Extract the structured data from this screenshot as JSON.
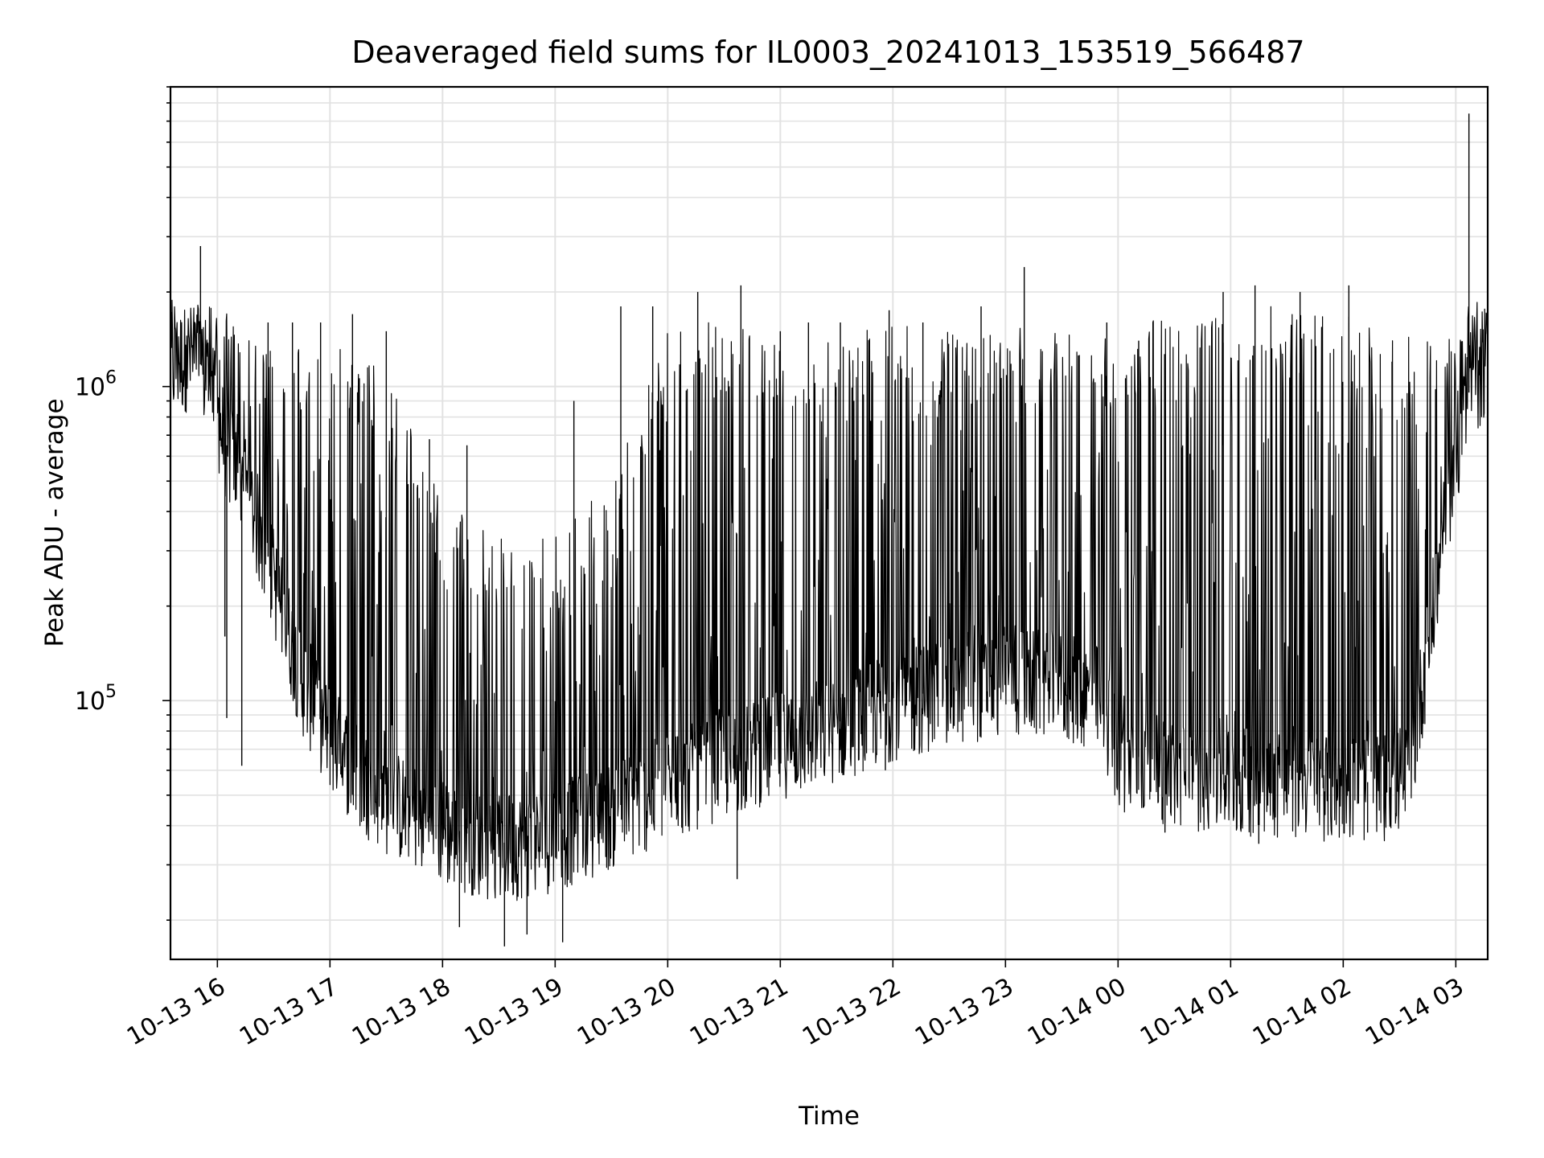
{
  "chart_data": {
    "type": "line",
    "title": "Deaveraged field sums for IL0003_20241013_153519_566487",
    "xlabel": "Time",
    "ylabel": "Peak ADU - average",
    "yscale": "log",
    "ylim": [
      15000,
      9000000
    ],
    "xlim": [
      "2024-10-13 15:35",
      "2024-10-14 03:17"
    ],
    "grid": true,
    "legend": "none",
    "line_color": "#000000",
    "x_ticks": [
      "10-13 16",
      "10-13 17",
      "10-13 18",
      "10-13 19",
      "10-13 20",
      "10-13 21",
      "10-13 22",
      "10-13 23",
      "10-14 00",
      "10-14 01",
      "10-14 02",
      "10-14 03"
    ],
    "x_tick_times": [
      "2024-10-13 16:00",
      "2024-10-13 17:00",
      "2024-10-13 18:00",
      "2024-10-13 19:00",
      "2024-10-13 20:00",
      "2024-10-13 21:00",
      "2024-10-13 22:00",
      "2024-10-13 23:00",
      "2024-10-14 00:00",
      "2024-10-14 01:00",
      "2024-10-14 02:00",
      "2024-10-14 03:00"
    ],
    "y_ticks": [
      {
        "value": 100000,
        "base": "10",
        "exp": "5"
      },
      {
        "value": 1000000,
        "base": "10",
        "exp": "6"
      }
    ],
    "series": [
      {
        "baseline": {
          "x": [
            "2024-10-13 15:35",
            "2024-10-13 15:45",
            "2024-10-13 15:55",
            "2024-10-13 16:05",
            "2024-10-13 16:15",
            "2024-10-13 16:30",
            "2024-10-13 16:45",
            "2024-10-13 17:00",
            "2024-10-13 17:15",
            "2024-10-13 17:30",
            "2024-10-13 17:45",
            "2024-10-13 18:00",
            "2024-10-13 18:30",
            "2024-10-13 19:00",
            "2024-10-13 19:30",
            "2024-10-13 20:00",
            "2024-10-13 20:30",
            "2024-10-13 21:00",
            "2024-10-13 21:30",
            "2024-10-13 22:00",
            "2024-10-13 22:30",
            "2024-10-13 23:00",
            "2024-10-13 23:30",
            "2024-10-13 23:50",
            "2024-10-14 00:00",
            "2024-10-14 00:30",
            "2024-10-14 01:00",
            "2024-10-14 01:30",
            "2024-10-14 02:00",
            "2024-10-14 02:20",
            "2024-10-14 02:35",
            "2024-10-14 02:45",
            "2024-10-14 02:55",
            "2024-10-14 03:05",
            "2024-10-14 03:17"
          ],
          "y": [
            1200000,
            1300000,
            1100000,
            650000,
            500000,
            250000,
            120000,
            80000,
            60000,
            50000,
            45000,
            40000,
            35000,
            38000,
            45000,
            55000,
            65000,
            75000,
            85000,
            100000,
            110000,
            120000,
            115000,
            105000,
            70000,
            60000,
            58000,
            56000,
            55000,
            55000,
            60000,
            150000,
            400000,
            900000,
            1300000
          ]
        },
        "upper_envelope": {
          "x": [
            "2024-10-13 15:35",
            "2024-10-13 16:00",
            "2024-10-13 16:30",
            "2024-10-13 17:00",
            "2024-10-13 17:30",
            "2024-10-13 18:00",
            "2024-10-13 18:30",
            "2024-10-13 19:00",
            "2024-10-13 19:30",
            "2024-10-13 20:00",
            "2024-10-13 20:30",
            "2024-10-13 21:00",
            "2024-10-13 21:30",
            "2024-10-13 22:00",
            "2024-10-13 22:30",
            "2024-10-13 23:00",
            "2024-10-13 23:30",
            "2024-10-14 00:00",
            "2024-10-14 00:30",
            "2024-10-14 01:00",
            "2024-10-14 01:30",
            "2024-10-14 02:00",
            "2024-10-14 02:30",
            "2024-10-14 03:00",
            "2024-10-14 03:17"
          ],
          "y": [
            2000000,
            1900000,
            1300000,
            1500000,
            1100000,
            450000,
            330000,
            330000,
            500000,
            1600000,
            1600000,
            1400000,
            1500000,
            1600000,
            1500000,
            1600000,
            1500000,
            1500000,
            1700000,
            1800000,
            1800000,
            1700000,
            1400000,
            1800000,
            2200000
          ]
        },
        "peaks": [
          {
            "x": "2024-10-13 15:51",
            "y": 2800000
          },
          {
            "x": "2024-10-13 16:27",
            "y": 1600000
          },
          {
            "x": "2024-10-13 16:40",
            "y": 1600000
          },
          {
            "x": "2024-10-13 16:55",
            "y": 1600000
          },
          {
            "x": "2024-10-13 17:12",
            "y": 1700000
          },
          {
            "x": "2024-10-13 17:30",
            "y": 1500000
          },
          {
            "x": "2024-10-13 17:53",
            "y": 680000
          },
          {
            "x": "2024-10-13 18:13",
            "y": 650000
          },
          {
            "x": "2024-10-13 19:10",
            "y": 900000
          },
          {
            "x": "2024-10-13 19:35",
            "y": 1800000
          },
          {
            "x": "2024-10-13 19:52",
            "y": 1800000
          },
          {
            "x": "2024-10-13 20:16",
            "y": 2000000
          },
          {
            "x": "2024-10-13 20:39",
            "y": 2100000
          },
          {
            "x": "2024-10-13 21:00",
            "y": 1500000
          },
          {
            "x": "2024-10-13 21:15",
            "y": 1600000
          },
          {
            "x": "2024-10-13 21:32",
            "y": 1600000
          },
          {
            "x": "2024-10-13 21:58",
            "y": 1750000
          },
          {
            "x": "2024-10-13 22:16",
            "y": 1600000
          },
          {
            "x": "2024-10-13 22:47",
            "y": 1800000
          },
          {
            "x": "2024-10-13 23:10",
            "y": 2400000
          },
          {
            "x": "2024-10-13 23:54",
            "y": 1600000
          },
          {
            "x": "2024-10-14 00:11",
            "y": 1400000
          },
          {
            "x": "2024-10-14 00:56",
            "y": 2000000
          },
          {
            "x": "2024-10-14 01:13",
            "y": 2100000
          },
          {
            "x": "2024-10-14 01:37",
            "y": 2000000
          },
          {
            "x": "2024-10-14 02:03",
            "y": 2100000
          },
          {
            "x": "2024-10-14 02:26",
            "y": 1200000
          },
          {
            "x": "2024-10-14 03:07",
            "y": 7400000
          }
        ],
        "troughs": [
          {
            "x": "2024-10-13 16:04",
            "y": 160000
          },
          {
            "x": "2024-10-13 16:05",
            "y": 88000
          },
          {
            "x": "2024-10-13 16:13",
            "y": 62000
          },
          {
            "x": "2024-10-13 18:09",
            "y": 19000
          },
          {
            "x": "2024-10-13 18:33",
            "y": 16500
          },
          {
            "x": "2024-10-13 18:45",
            "y": 18000
          },
          {
            "x": "2024-10-13 19:04",
            "y": 17000
          },
          {
            "x": "2024-10-13 20:37",
            "y": 27000
          },
          {
            "x": "2024-10-13 21:56",
            "y": 60000
          },
          {
            "x": "2024-10-14 00:25",
            "y": 38000
          },
          {
            "x": "2024-10-14 01:15",
            "y": 35000
          },
          {
            "x": "2024-10-14 02:13",
            "y": 38000
          }
        ]
      }
    ]
  }
}
